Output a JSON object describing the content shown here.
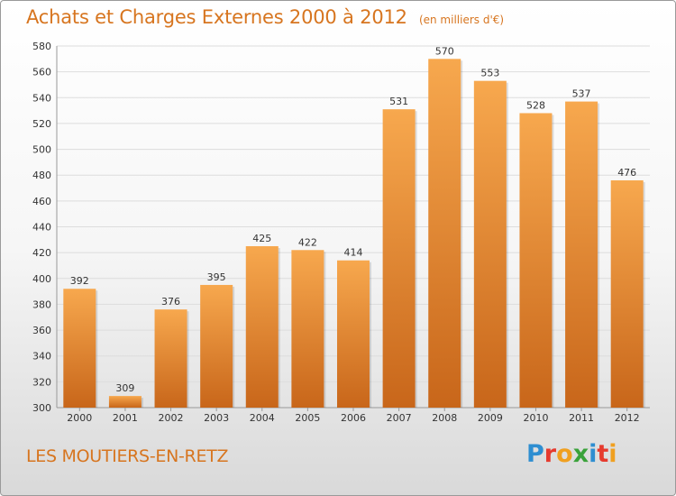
{
  "title": "Achats et Charges Externes 2000 à 2012",
  "unit": "(en milliers d'€)",
  "city": "LES MOUTIERS-EN-RETZ",
  "logo": {
    "text": "Proxiti",
    "letters": [
      {
        "ch": "P",
        "color": "#2e8ed1"
      },
      {
        "ch": "r",
        "color": "#e63a2e"
      },
      {
        "ch": "o",
        "color": "#f0a020"
      },
      {
        "ch": "x",
        "color": "#3aa23a"
      },
      {
        "ch": "i",
        "color": "#2e8ed1"
      },
      {
        "ch": "t",
        "color": "#e63a2e"
      },
      {
        "ch": "i",
        "color": "#f0a020"
      }
    ]
  },
  "colors": {
    "bar_top": "#f7a84e",
    "bar_bottom": "#c8661a",
    "grid": "#dddddd",
    "title": "#d7751f"
  },
  "chart_data": {
    "type": "bar",
    "categories": [
      "2000",
      "2001",
      "2002",
      "2003",
      "2004",
      "2005",
      "2006",
      "2007",
      "2008",
      "2009",
      "2010",
      "2011",
      "2012"
    ],
    "values": [
      392,
      309,
      376,
      395,
      425,
      422,
      414,
      531,
      570,
      553,
      528,
      537,
      476
    ],
    "ylim": [
      300,
      580
    ],
    "yticks": [
      300,
      320,
      340,
      360,
      380,
      400,
      420,
      440,
      460,
      480,
      500,
      520,
      540,
      560,
      580
    ],
    "grid": true,
    "data_labels": true
  }
}
